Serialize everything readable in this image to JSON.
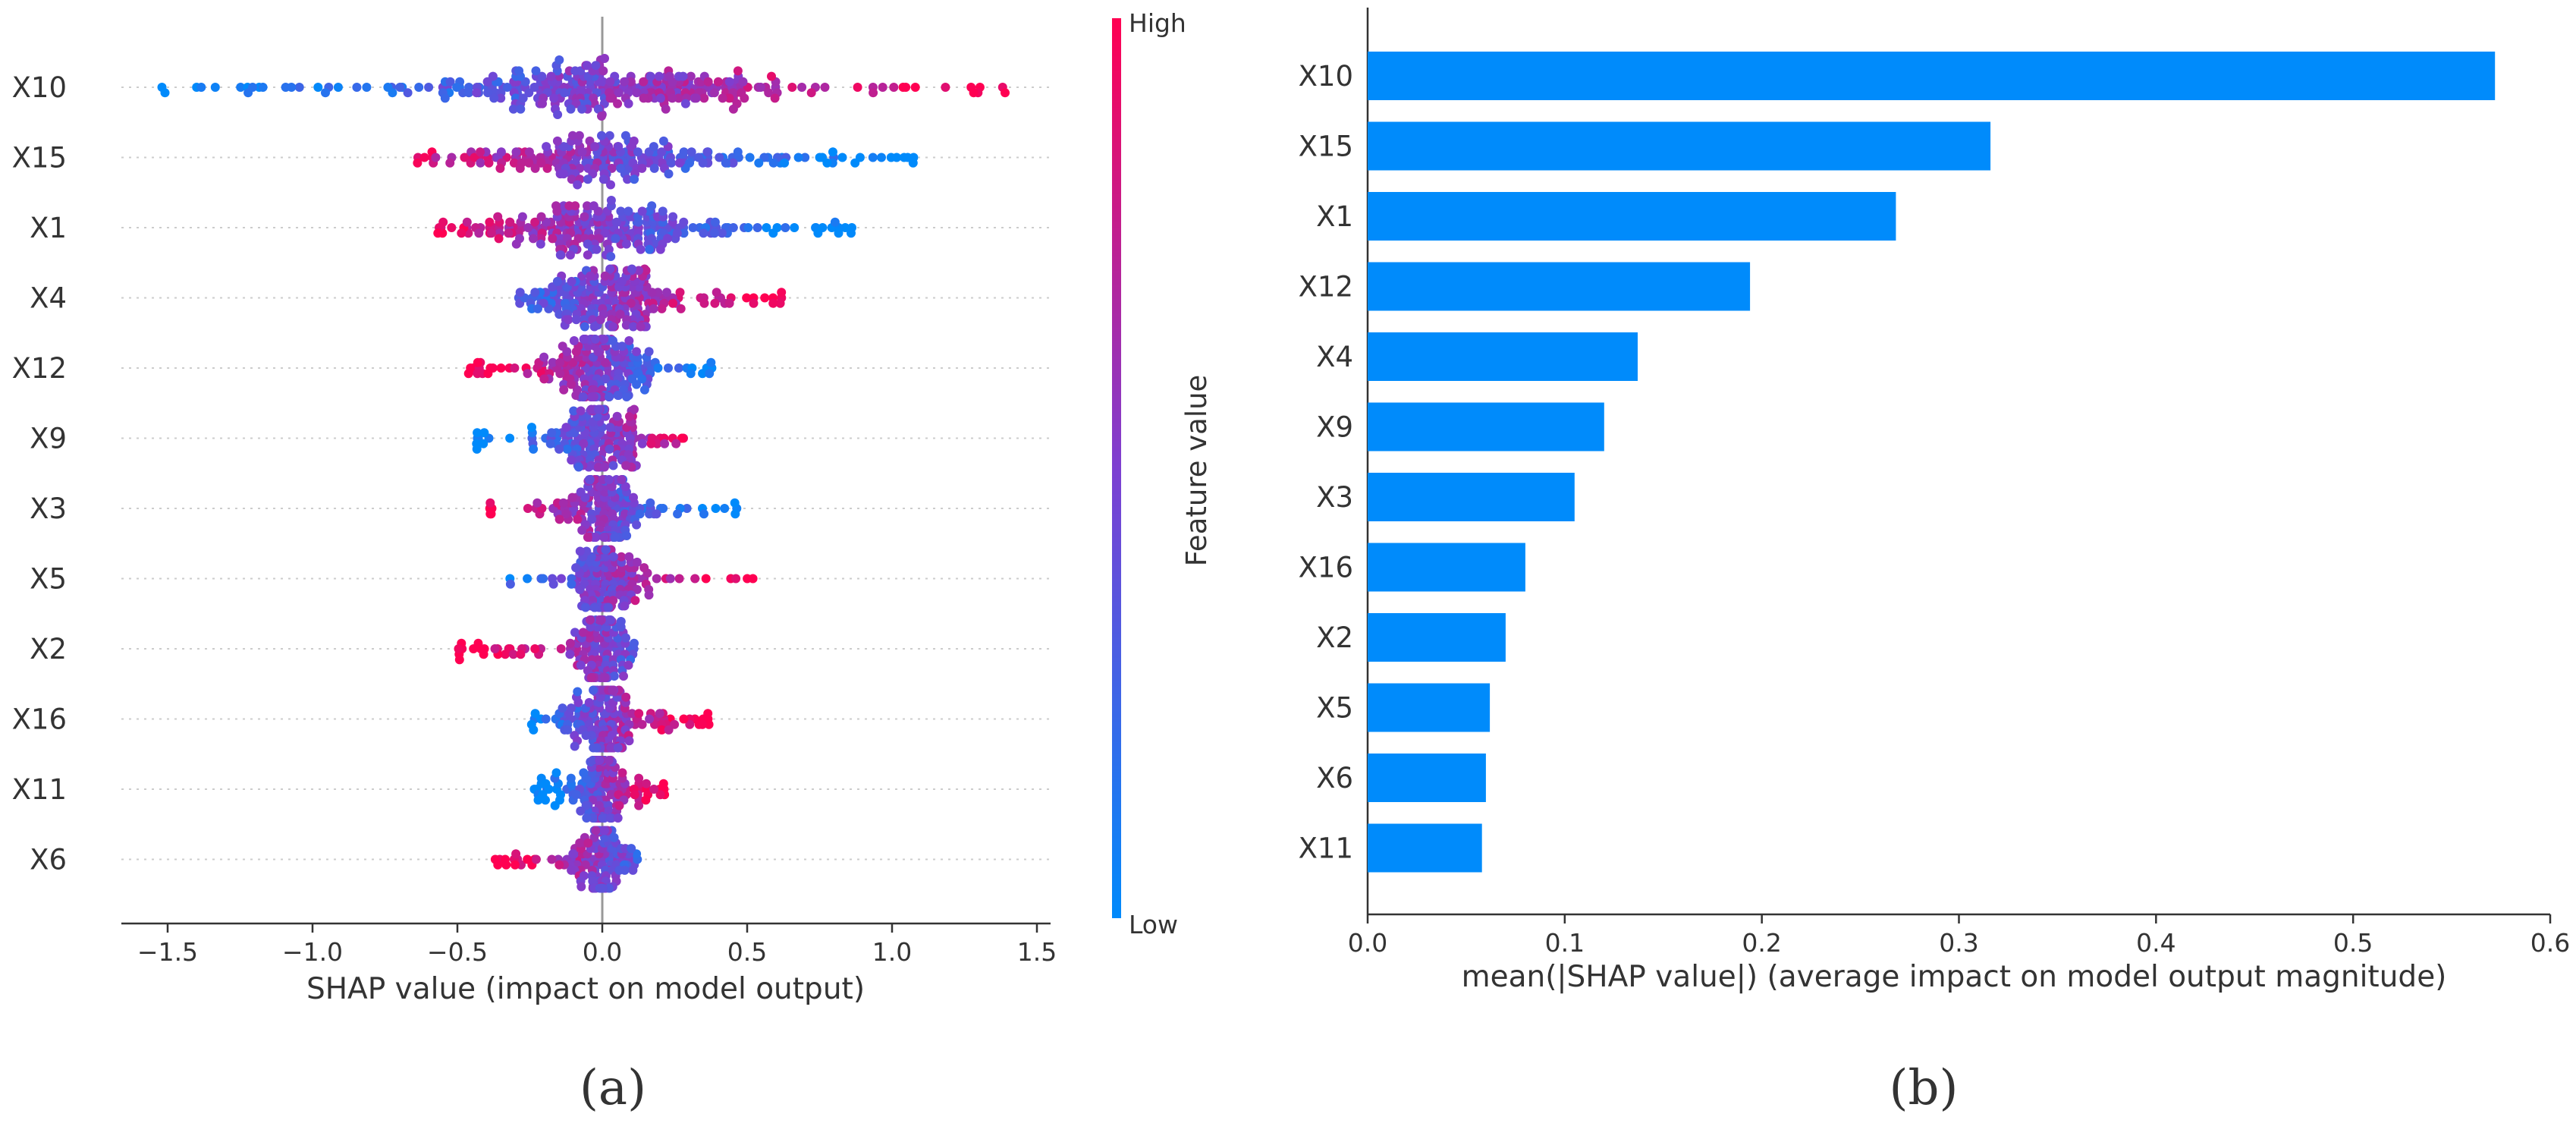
{
  "panels": {
    "a": {
      "label": "(a)",
      "letter": "a"
    },
    "b": {
      "label": "(b)",
      "letter": "b"
    }
  },
  "colors": {
    "low": "#008afb",
    "mid": "#7d3fd1",
    "high": "#ff0052",
    "bar": "#008bfb",
    "axis": "#333333",
    "zero_line": "#999999",
    "grid_dotted": "#cccccc"
  },
  "chart_data": [
    {
      "type": "scatter",
      "subtype": "shap-beeswarm",
      "title": "",
      "xlabel": "SHAP value (impact on model output)",
      "ylabel": "",
      "xlim": [
        -1.68,
        1.55
      ],
      "xticks": [
        -1.5,
        -1.0,
        -0.5,
        0.0,
        0.5,
        1.0,
        1.5
      ],
      "xtick_labels": [
        "−1.5",
        "−1.0",
        "−0.5",
        "0.0",
        "0.5",
        "1.0",
        "1.5"
      ],
      "features": [
        "X10",
        "X15",
        "X1",
        "X4",
        "X12",
        "X9",
        "X3",
        "X5",
        "X2",
        "X16",
        "X11",
        "X6"
      ],
      "feature_ranges": [
        {
          "feature": "X10",
          "min": -1.52,
          "max": 1.4,
          "n": 300,
          "direction": "positive",
          "spread": 0.42
        },
        {
          "feature": "X15",
          "min": -0.65,
          "max": 1.08,
          "n": 220,
          "direction": "negative",
          "spread": 0.28
        },
        {
          "feature": "X1",
          "min": -0.57,
          "max": 0.87,
          "n": 240,
          "direction": "negative",
          "spread": 0.25
        },
        {
          "feature": "X4",
          "min": -0.3,
          "max": 0.63,
          "n": 220,
          "direction": "positive",
          "spread": 0.16
        },
        {
          "feature": "X12",
          "min": -0.47,
          "max": 0.38,
          "n": 210,
          "direction": "negative",
          "spread": 0.13
        },
        {
          "feature": "X9",
          "min": -0.44,
          "max": 0.29,
          "n": 170,
          "direction": "positive",
          "spread": 0.1
        },
        {
          "feature": "X3",
          "min": -0.4,
          "max": 0.47,
          "n": 170,
          "direction": "negative",
          "spread": 0.09
        },
        {
          "feature": "X5",
          "min": -0.32,
          "max": 0.52,
          "n": 150,
          "direction": "positive",
          "spread": 0.08
        },
        {
          "feature": "X2",
          "min": -0.5,
          "max": 0.11,
          "n": 140,
          "direction": "negative",
          "spread": 0.06
        },
        {
          "feature": "X16",
          "min": -0.25,
          "max": 0.37,
          "n": 180,
          "direction": "positive",
          "spread": 0.07
        },
        {
          "feature": "X11",
          "min": -0.24,
          "max": 0.22,
          "n": 160,
          "direction": "positive",
          "spread": 0.06
        },
        {
          "feature": "X6",
          "min": -0.37,
          "max": 0.13,
          "n": 140,
          "direction": "negative",
          "spread": 0.05
        }
      ],
      "colorbar": {
        "label": "Feature value",
        "high_label": "High",
        "low_label": "Low"
      }
    },
    {
      "type": "bar",
      "orientation": "horizontal",
      "title": "",
      "xlabel": "mean(|SHAP value|) (average impact on model output magnitude)",
      "ylabel": "",
      "xlim": [
        0,
        0.6
      ],
      "xticks": [
        0.0,
        0.1,
        0.2,
        0.3,
        0.4,
        0.5,
        0.6
      ],
      "xtick_labels": [
        "0.0",
        "0.1",
        "0.2",
        "0.3",
        "0.4",
        "0.5",
        "0.6"
      ],
      "categories": [
        "X10",
        "X15",
        "X1",
        "X12",
        "X4",
        "X9",
        "X3",
        "X16",
        "X2",
        "X5",
        "X6",
        "X11"
      ],
      "values": [
        0.572,
        0.316,
        0.268,
        0.194,
        0.137,
        0.12,
        0.105,
        0.08,
        0.07,
        0.062,
        0.06,
        0.058
      ]
    }
  ]
}
